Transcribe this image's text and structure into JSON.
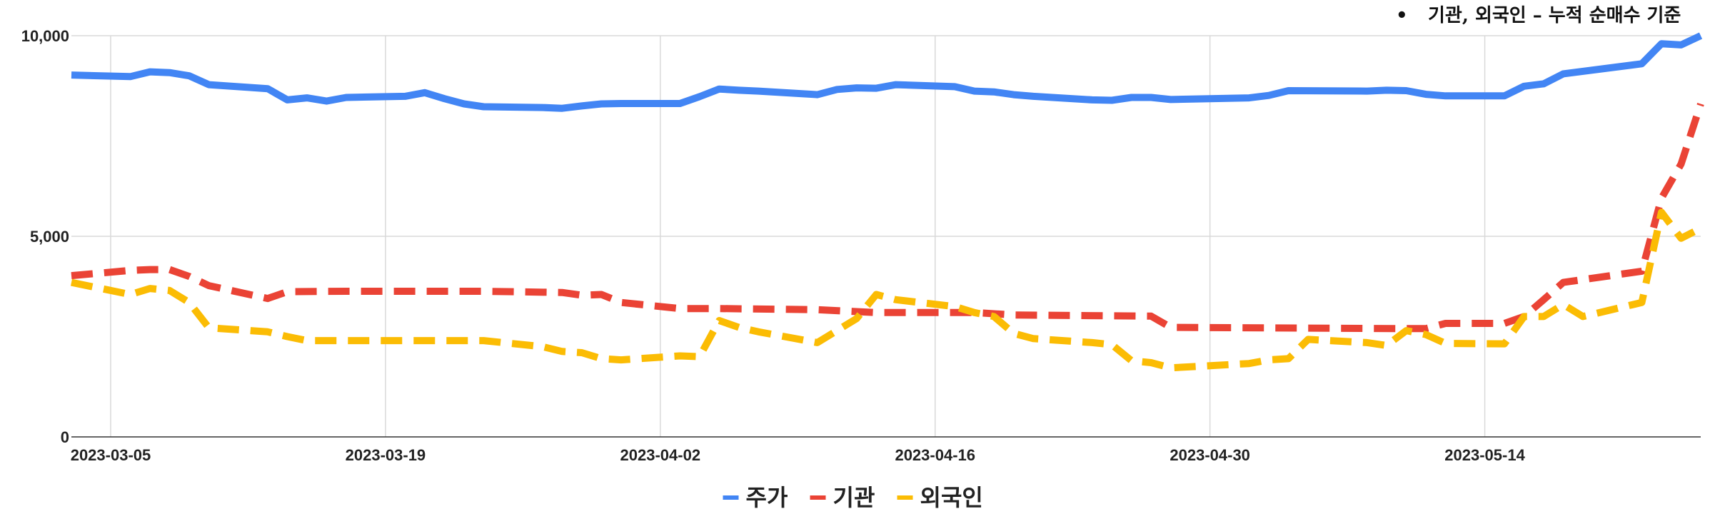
{
  "note": {
    "bullet": "•",
    "text": "기관, 외국인 – 누적 순매수 기준"
  },
  "chart_data": {
    "type": "line",
    "title": "",
    "xlabel": "",
    "ylabel": "",
    "ylim": [
      0,
      10000
    ],
    "xlim": [
      "2023-03-03",
      "2023-05-25"
    ],
    "y_ticks": [
      0,
      5000,
      10000
    ],
    "y_tick_labels": [
      "0",
      "5,000",
      "10,000"
    ],
    "x_ticks": [
      "2023-03-05",
      "2023-03-19",
      "2023-04-02",
      "2023-04-16",
      "2023-04-30",
      "2023-05-14"
    ],
    "grid": true,
    "legend_position": "bottom",
    "series": [
      {
        "name": "주가",
        "color": "#4285f4",
        "dash": "solid",
        "points": [
          [
            "2023-03-03",
            9020
          ],
          [
            "2023-03-06",
            8980
          ],
          [
            "2023-03-07",
            9100
          ],
          [
            "2023-03-08",
            9080
          ],
          [
            "2023-03-09",
            9000
          ],
          [
            "2023-03-10",
            8780
          ],
          [
            "2023-03-13",
            8680
          ],
          [
            "2023-03-14",
            8400
          ],
          [
            "2023-03-15",
            8450
          ],
          [
            "2023-03-16",
            8370
          ],
          [
            "2023-03-17",
            8460
          ],
          [
            "2023-03-20",
            8490
          ],
          [
            "2023-03-21",
            8580
          ],
          [
            "2023-03-22",
            8430
          ],
          [
            "2023-03-23",
            8300
          ],
          [
            "2023-03-24",
            8230
          ],
          [
            "2023-03-27",
            8210
          ],
          [
            "2023-03-28",
            8190
          ],
          [
            "2023-03-29",
            8250
          ],
          [
            "2023-03-30",
            8300
          ],
          [
            "2023-03-31",
            8310
          ],
          [
            "2023-04-03",
            8310
          ],
          [
            "2023-04-04",
            8480
          ],
          [
            "2023-04-05",
            8670
          ],
          [
            "2023-04-06",
            8640
          ],
          [
            "2023-04-07",
            8620
          ],
          [
            "2023-04-10",
            8530
          ],
          [
            "2023-04-11",
            8660
          ],
          [
            "2023-04-12",
            8700
          ],
          [
            "2023-04-13",
            8690
          ],
          [
            "2023-04-14",
            8780
          ],
          [
            "2023-04-17",
            8730
          ],
          [
            "2023-04-18",
            8620
          ],
          [
            "2023-04-19",
            8600
          ],
          [
            "2023-04-20",
            8530
          ],
          [
            "2023-04-21",
            8490
          ],
          [
            "2023-04-24",
            8400
          ],
          [
            "2023-04-25",
            8390
          ],
          [
            "2023-04-26",
            8460
          ],
          [
            "2023-04-27",
            8460
          ],
          [
            "2023-04-28",
            8410
          ],
          [
            "2023-05-02",
            8450
          ],
          [
            "2023-05-03",
            8510
          ],
          [
            "2023-05-04",
            8630
          ],
          [
            "2023-05-08",
            8620
          ],
          [
            "2023-05-09",
            8640
          ],
          [
            "2023-05-10",
            8630
          ],
          [
            "2023-05-11",
            8540
          ],
          [
            "2023-05-12",
            8500
          ],
          [
            "2023-05-15",
            8500
          ],
          [
            "2023-05-16",
            8740
          ],
          [
            "2023-05-17",
            8800
          ],
          [
            "2023-05-18",
            9050
          ],
          [
            "2023-05-22",
            9300
          ],
          [
            "2023-05-23",
            9800
          ],
          [
            "2023-05-24",
            9770
          ],
          [
            "2023-05-25",
            10000
          ]
        ]
      },
      {
        "name": "기관",
        "color": "#ea4335",
        "dash": "dashed",
        "points": [
          [
            "2023-03-03",
            4020
          ],
          [
            "2023-03-06",
            4150
          ],
          [
            "2023-03-07",
            4170
          ],
          [
            "2023-03-08",
            4170
          ],
          [
            "2023-03-09",
            4000
          ],
          [
            "2023-03-10",
            3770
          ],
          [
            "2023-03-13",
            3450
          ],
          [
            "2023-03-14",
            3620
          ],
          [
            "2023-03-17",
            3630
          ],
          [
            "2023-03-24",
            3630
          ],
          [
            "2023-03-28",
            3600
          ],
          [
            "2023-03-29",
            3530
          ],
          [
            "2023-03-30",
            3550
          ],
          [
            "2023-03-31",
            3350
          ],
          [
            "2023-04-03",
            3200
          ],
          [
            "2023-04-05",
            3200
          ],
          [
            "2023-04-10",
            3170
          ],
          [
            "2023-04-13",
            3100
          ],
          [
            "2023-04-18",
            3100
          ],
          [
            "2023-04-20",
            3040
          ],
          [
            "2023-04-27",
            3010
          ],
          [
            "2023-04-28",
            2730
          ],
          [
            "2023-05-10",
            2700
          ],
          [
            "2023-05-11",
            2700
          ],
          [
            "2023-05-12",
            2830
          ],
          [
            "2023-05-15",
            2830
          ],
          [
            "2023-05-16",
            3000
          ],
          [
            "2023-05-17",
            3420
          ],
          [
            "2023-05-18",
            3850
          ],
          [
            "2023-05-22",
            4130
          ],
          [
            "2023-05-23",
            5950
          ],
          [
            "2023-05-24",
            6800
          ],
          [
            "2023-05-25",
            8300
          ]
        ]
      },
      {
        "name": "외국인",
        "color": "#fbbc04",
        "dash": "dashed",
        "points": [
          [
            "2023-03-03",
            3850
          ],
          [
            "2023-03-06",
            3550
          ],
          [
            "2023-03-07",
            3700
          ],
          [
            "2023-03-08",
            3650
          ],
          [
            "2023-03-09",
            3350
          ],
          [
            "2023-03-10",
            2720
          ],
          [
            "2023-03-13",
            2620
          ],
          [
            "2023-03-14",
            2500
          ],
          [
            "2023-03-15",
            2400
          ],
          [
            "2023-03-24",
            2400
          ],
          [
            "2023-03-27",
            2250
          ],
          [
            "2023-03-28",
            2130
          ],
          [
            "2023-03-29",
            2100
          ],
          [
            "2023-03-30",
            1950
          ],
          [
            "2023-03-31",
            1920
          ],
          [
            "2023-04-03",
            2020
          ],
          [
            "2023-04-04",
            2000
          ],
          [
            "2023-04-05",
            2900
          ],
          [
            "2023-04-06",
            2730
          ],
          [
            "2023-04-07",
            2620
          ],
          [
            "2023-04-10",
            2350
          ],
          [
            "2023-04-11",
            2650
          ],
          [
            "2023-04-12",
            2950
          ],
          [
            "2023-04-13",
            3550
          ],
          [
            "2023-04-14",
            3420
          ],
          [
            "2023-04-17",
            3250
          ],
          [
            "2023-04-18",
            3100
          ],
          [
            "2023-04-19",
            3000
          ],
          [
            "2023-04-20",
            2580
          ],
          [
            "2023-04-21",
            2450
          ],
          [
            "2023-04-24",
            2350
          ],
          [
            "2023-04-25",
            2300
          ],
          [
            "2023-04-26",
            1900
          ],
          [
            "2023-04-27",
            1850
          ],
          [
            "2023-04-28",
            1720
          ],
          [
            "2023-05-02",
            1830
          ],
          [
            "2023-05-03",
            1920
          ],
          [
            "2023-05-04",
            1950
          ],
          [
            "2023-05-05",
            2430
          ],
          [
            "2023-05-08",
            2350
          ],
          [
            "2023-05-09",
            2280
          ],
          [
            "2023-05-10",
            2650
          ],
          [
            "2023-05-11",
            2550
          ],
          [
            "2023-05-12",
            2330
          ],
          [
            "2023-05-15",
            2320
          ],
          [
            "2023-05-16",
            3000
          ],
          [
            "2023-05-17",
            3000
          ],
          [
            "2023-05-18",
            3300
          ],
          [
            "2023-05-19",
            3000
          ],
          [
            "2023-05-22",
            3350
          ],
          [
            "2023-05-23",
            5600
          ],
          [
            "2023-05-24",
            4950
          ],
          [
            "2023-05-25",
            5200
          ]
        ]
      }
    ]
  }
}
